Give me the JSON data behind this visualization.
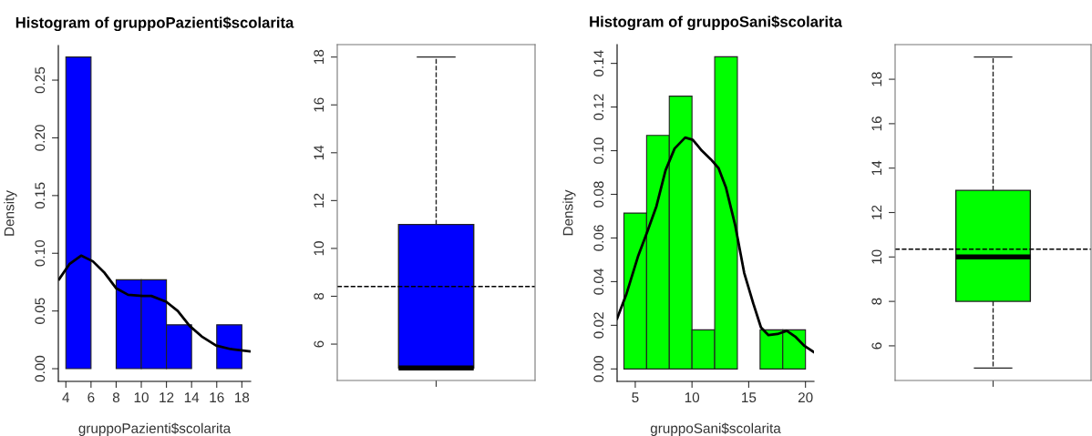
{
  "chart_data": [
    {
      "type": "histogram",
      "title": "Histogram of gruppoPazienti$scolarita",
      "xlabel": "gruppoPazienti$scolarita",
      "ylabel": "Density",
      "color": "#0000ff",
      "bins": [
        4,
        6,
        8,
        10,
        12,
        14,
        16,
        18
      ],
      "values": [
        0.27,
        0,
        0.077,
        0.077,
        0.038,
        0,
        0.038
      ],
      "series": [
        {
          "type": "line",
          "color": "#000000",
          "x": [
            3.46,
            4.28,
            5.21,
            6.15,
            7.08,
            8.01,
            8.95,
            10.1,
            10.8,
            11.98,
            12.9,
            13.85,
            14.8,
            15.95,
            17.1,
            18.6
          ],
          "values": [
            0.0775,
            0.0906,
            0.098,
            0.093,
            0.083,
            0.0696,
            0.064,
            0.063,
            0.063,
            0.058,
            0.05,
            0.037,
            0.028,
            0.02,
            0.017,
            0.015
          ]
        }
      ],
      "xlim": [
        3.4,
        18.7
      ],
      "ylim": [
        -0.011,
        0.28
      ],
      "xticks": [
        4,
        6,
        8,
        10,
        12,
        14,
        16,
        18
      ],
      "yticks": [
        {
          "value": 0,
          "label": "0.00"
        },
        0.05,
        {
          "value": 0.1,
          "label": "0.10"
        },
        0.15,
        {
          "value": 0.2,
          "label": "0.20"
        },
        0.25
      ]
    },
    {
      "type": "box",
      "categories": [
        null
      ],
      "color": "#0000ff",
      "boxes": [
        {
          "low": 5,
          "q1": 5,
          "median": 5,
          "q3": 11,
          "high": 18
        }
      ],
      "ref_lines": [
        {
          "axis": "y",
          "value": 8.41,
          "color": "#000000",
          "line_style": "dashed"
        }
      ],
      "ylim": [
        4.48,
        18.52
      ],
      "yticks": [
        6,
        8,
        10,
        12,
        14,
        16,
        18
      ],
      "tick_labels": "y"
    },
    {
      "type": "histogram",
      "title": "Histogram of gruppoSani$scolarita",
      "xlabel": "gruppoSani$scolarita",
      "ylabel": "Density",
      "color": "#00ff00",
      "bins": [
        4,
        6,
        8,
        10,
        12,
        14,
        16,
        18,
        20
      ],
      "values": [
        0.0714,
        0.107,
        0.125,
        0.0179,
        0.143,
        0,
        0.0179,
        0.0179
      ],
      "series": [
        {
          "type": "line",
          "color": "#000000",
          "x": [
            3.4,
            4.2,
            5.27,
            6.07,
            6.87,
            7.67,
            8.47,
            9.4,
            10.07,
            10.87,
            11.67,
            12.34,
            13.0,
            13.8,
            14.6,
            15.4,
            16.08,
            16.74,
            17.54,
            18.35,
            19.1,
            19.9,
            20.7
          ],
          "values": [
            0.0231,
            0.034,
            0.052,
            0.063,
            0.0746,
            0.091,
            0.101,
            0.106,
            0.105,
            0.1,
            0.096,
            0.092,
            0.083,
            0.066,
            0.044,
            0.03,
            0.019,
            0.0155,
            0.016,
            0.0175,
            0.0148,
            0.0106,
            0.0078
          ]
        }
      ],
      "xlim": [
        3.4,
        20.75
      ],
      "ylim": [
        -0.0057,
        0.1486
      ],
      "xticks": [
        5,
        10,
        15,
        20
      ],
      "yticks": [
        {
          "value": 0,
          "label": "0.00"
        },
        0.02,
        0.04,
        0.06,
        0.08,
        {
          "value": 0.1,
          "label": "0.10"
        },
        0.12,
        0.14
      ]
    },
    {
      "type": "box",
      "categories": [
        null
      ],
      "color": "#00ff00",
      "boxes": [
        {
          "low": 5,
          "q1": 8,
          "median": 10,
          "q3": 13,
          "high": 19
        }
      ],
      "ref_lines": [
        {
          "axis": "y",
          "value": 10.35,
          "color": "#000000",
          "line_style": "dashed"
        }
      ],
      "ylim": [
        4.44,
        19.56
      ],
      "yticks": [
        6,
        8,
        10,
        12,
        14,
        16,
        18
      ],
      "tick_labels": "y"
    }
  ]
}
